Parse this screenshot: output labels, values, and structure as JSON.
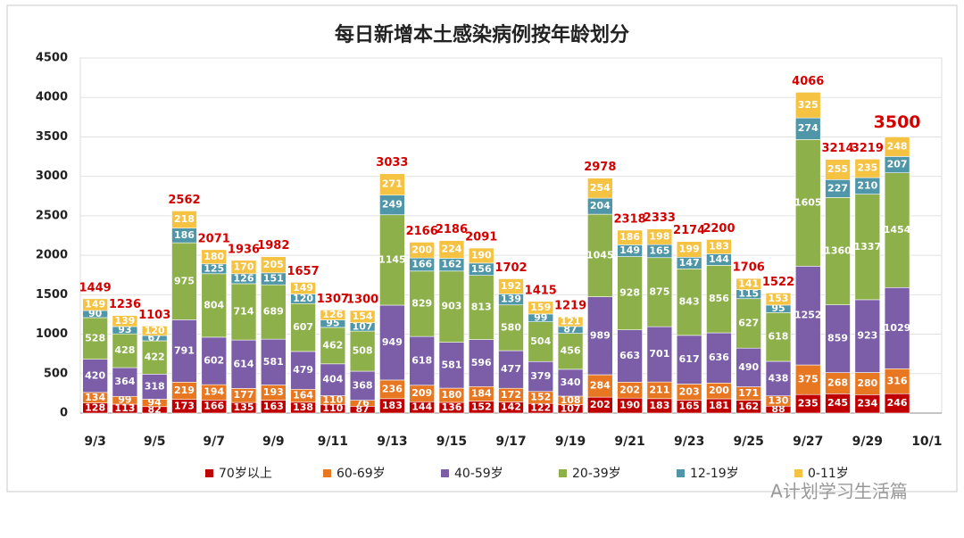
{
  "chart_data": {
    "type": "stacked_bar",
    "title": "每日新增本土感染病例按年龄划分",
    "categories": [
      "9/3",
      null,
      "9/5",
      null,
      "9/7",
      null,
      "9/9",
      null,
      "9/11",
      null,
      "9/13",
      null,
      "9/15",
      null,
      "9/17",
      null,
      "9/19",
      null,
      "9/21",
      null,
      "9/23",
      null,
      "9/25",
      null,
      "9/27",
      null,
      "9/29",
      null,
      "10/1"
    ],
    "series": [
      {
        "name": "70岁以上",
        "color": "#c00000",
        "values": [
          128,
          113,
          82,
          173,
          166,
          135,
          163,
          138,
          110,
          87,
          183,
          144,
          136,
          152,
          142,
          122,
          107,
          202,
          190,
          183,
          165,
          181,
          162,
          88,
          235,
          245,
          234,
          246,
          null
        ]
      },
      {
        "name": "60-69岁",
        "color": "#e87722",
        "values": [
          134,
          99,
          94,
          219,
          194,
          177,
          193,
          164,
          110,
          76,
          236,
          209,
          180,
          184,
          172,
          152,
          108,
          284,
          202,
          211,
          203,
          200,
          171,
          130,
          375,
          268,
          280,
          316,
          null
        ]
      },
      {
        "name": "40-59岁",
        "color": "#7b5ea7",
        "values": [
          420,
          364,
          318,
          791,
          602,
          614,
          581,
          479,
          404,
          368,
          949,
          618,
          581,
          596,
          477,
          379,
          340,
          989,
          663,
          701,
          617,
          636,
          490,
          438,
          1252,
          859,
          923,
          1029,
          null
        ]
      },
      {
        "name": "20-39岁",
        "color": "#8db04b",
        "values": [
          528,
          428,
          422,
          975,
          804,
          714,
          689,
          607,
          462,
          508,
          1145,
          829,
          903,
          813,
          580,
          504,
          456,
          1045,
          928,
          875,
          843,
          856,
          627,
          618,
          1605,
          1360,
          1337,
          1454,
          null
        ]
      },
      {
        "name": "12-19岁",
        "color": "#4f97a8",
        "values": [
          90,
          93,
          67,
          186,
          125,
          126,
          151,
          120,
          95,
          107,
          249,
          166,
          162,
          156,
          139,
          99,
          87,
          204,
          149,
          165,
          147,
          144,
          115,
          95,
          274,
          227,
          210,
          207,
          null
        ]
      },
      {
        "name": "0-11岁",
        "color": "#f5c242",
        "values": [
          149,
          139,
          120,
          218,
          180,
          170,
          205,
          149,
          126,
          154,
          271,
          200,
          224,
          190,
          192,
          159,
          121,
          254,
          186,
          198,
          199,
          183,
          141,
          153,
          325,
          255,
          235,
          248,
          null
        ]
      }
    ],
    "totals": [
      1449,
      1236,
      1103,
      2562,
      2071,
      1936,
      1982,
      1657,
      1307,
      1300,
      3033,
      2166,
      2186,
      2091,
      1702,
      1415,
      1219,
      2978,
      2318,
      2333,
      2174,
      2200,
      1706,
      1522,
      4066,
      3214,
      3219,
      3500,
      null
    ],
    "ylim": [
      0,
      4500
    ],
    "yticks": [
      0,
      500,
      1000,
      1500,
      2000,
      2500,
      3000,
      3500,
      4000,
      4500
    ],
    "grid": true,
    "watermark": "A计划学习生活篇"
  }
}
